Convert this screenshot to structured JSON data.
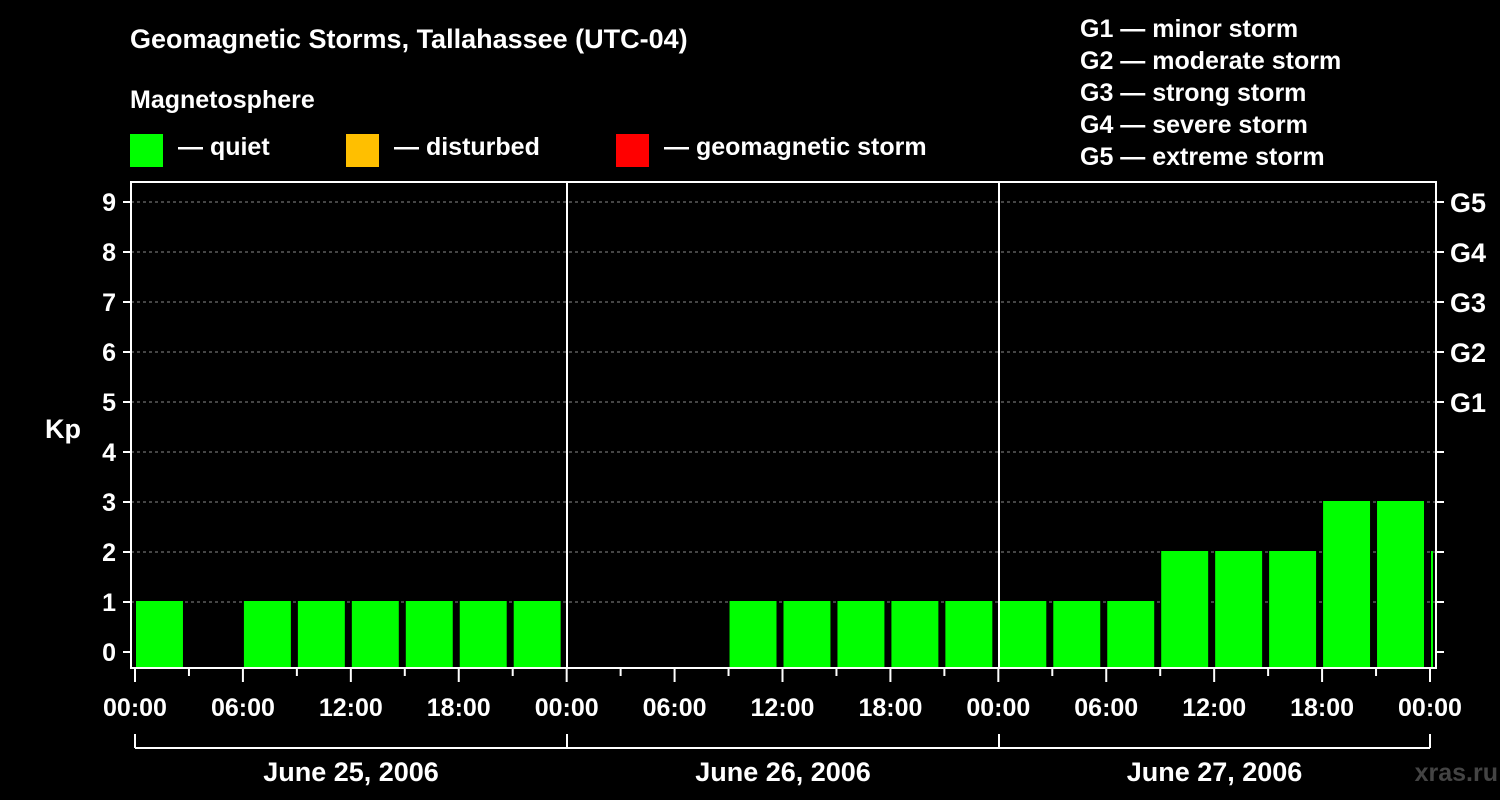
{
  "title": "Geomagnetic Storms, Tallahassee (UTC-04)",
  "magnetosphere": {
    "heading": "Magnetosphere",
    "legend": [
      {
        "label": "— quiet",
        "color": "#00ff00"
      },
      {
        "label": "— disturbed",
        "color": "#ffbf00"
      },
      {
        "label": "— geomagnetic storm",
        "color": "#ff0000"
      }
    ]
  },
  "storm_scale": [
    "G1 — minor storm",
    "G2 — moderate storm",
    "G3 — strong storm",
    "G4 — severe storm",
    "G5 — extreme storm"
  ],
  "watermark": "xras.ru",
  "chart_data": {
    "type": "bar",
    "ylabel": "Kp",
    "ylim": [
      0,
      9
    ],
    "yticks": [
      "0",
      "1",
      "2",
      "3",
      "4",
      "5",
      "6",
      "7",
      "8",
      "9"
    ],
    "right_ticks": [
      {
        "kp": 5,
        "label": "G1"
      },
      {
        "kp": 6,
        "label": "G2"
      },
      {
        "kp": 7,
        "label": "G3"
      },
      {
        "kp": 8,
        "label": "G4"
      },
      {
        "kp": 9,
        "label": "G5"
      }
    ],
    "xtick_labels": [
      "00:00",
      "06:00",
      "12:00",
      "18:00",
      "00:00",
      "06:00",
      "12:00",
      "18:00",
      "00:00",
      "06:00",
      "12:00",
      "18:00",
      "00:00"
    ],
    "days": [
      "June 25, 2006",
      "June 26, 2006",
      "June 27, 2006"
    ],
    "grid": true,
    "series": [
      {
        "values": [
          1,
          0,
          1,
          1,
          1,
          1,
          1,
          1,
          0,
          0,
          0,
          1,
          1,
          1,
          1,
          1,
          1,
          1,
          1,
          2,
          2,
          2,
          3,
          3,
          2
        ],
        "color": "#00ff00"
      }
    ]
  }
}
